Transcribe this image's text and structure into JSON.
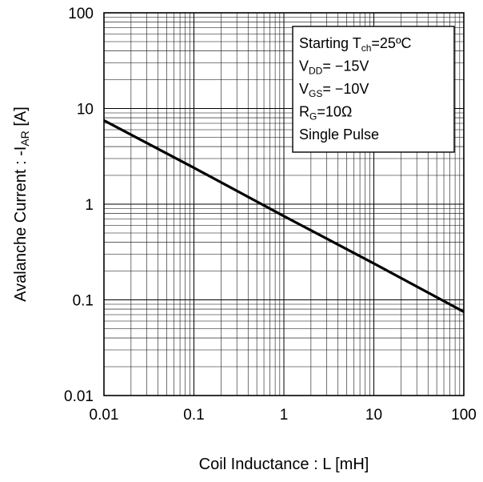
{
  "chart_data": {
    "type": "line",
    "x_scale": "log",
    "y_scale": "log",
    "xlabel": "Coil Inductance : L [mH]",
    "ylabel": {
      "prefix": "Avalanche Current : -I",
      "sub": "AR",
      "suffix": " [A]"
    },
    "xlim": [
      0.01,
      100
    ],
    "ylim": [
      0.01,
      100
    ],
    "x_ticks": [
      "0.01",
      "0.1",
      "1",
      "10",
      "100"
    ],
    "y_ticks": [
      "100",
      "10",
      "1",
      "0.1",
      "0.01"
    ],
    "grid": true,
    "series": [
      {
        "x": [
          0.01,
          0.1,
          1,
          10,
          100
        ],
        "y": [
          7.5,
          2.4,
          0.75,
          0.24,
          0.075
        ]
      }
    ],
    "annotation_lines": [
      {
        "main": "Starting T",
        "sub": "ch",
        "rest": "=25ºC"
      },
      {
        "main": "V",
        "sub": "DD",
        "rest": "= −15V"
      },
      {
        "main": "V",
        "sub": "GS",
        "rest": "= −10V"
      },
      {
        "main": "R",
        "sub": "G",
        "rest": "=10Ω"
      },
      {
        "main": "Single Pulse",
        "sub": "",
        "rest": ""
      }
    ]
  }
}
